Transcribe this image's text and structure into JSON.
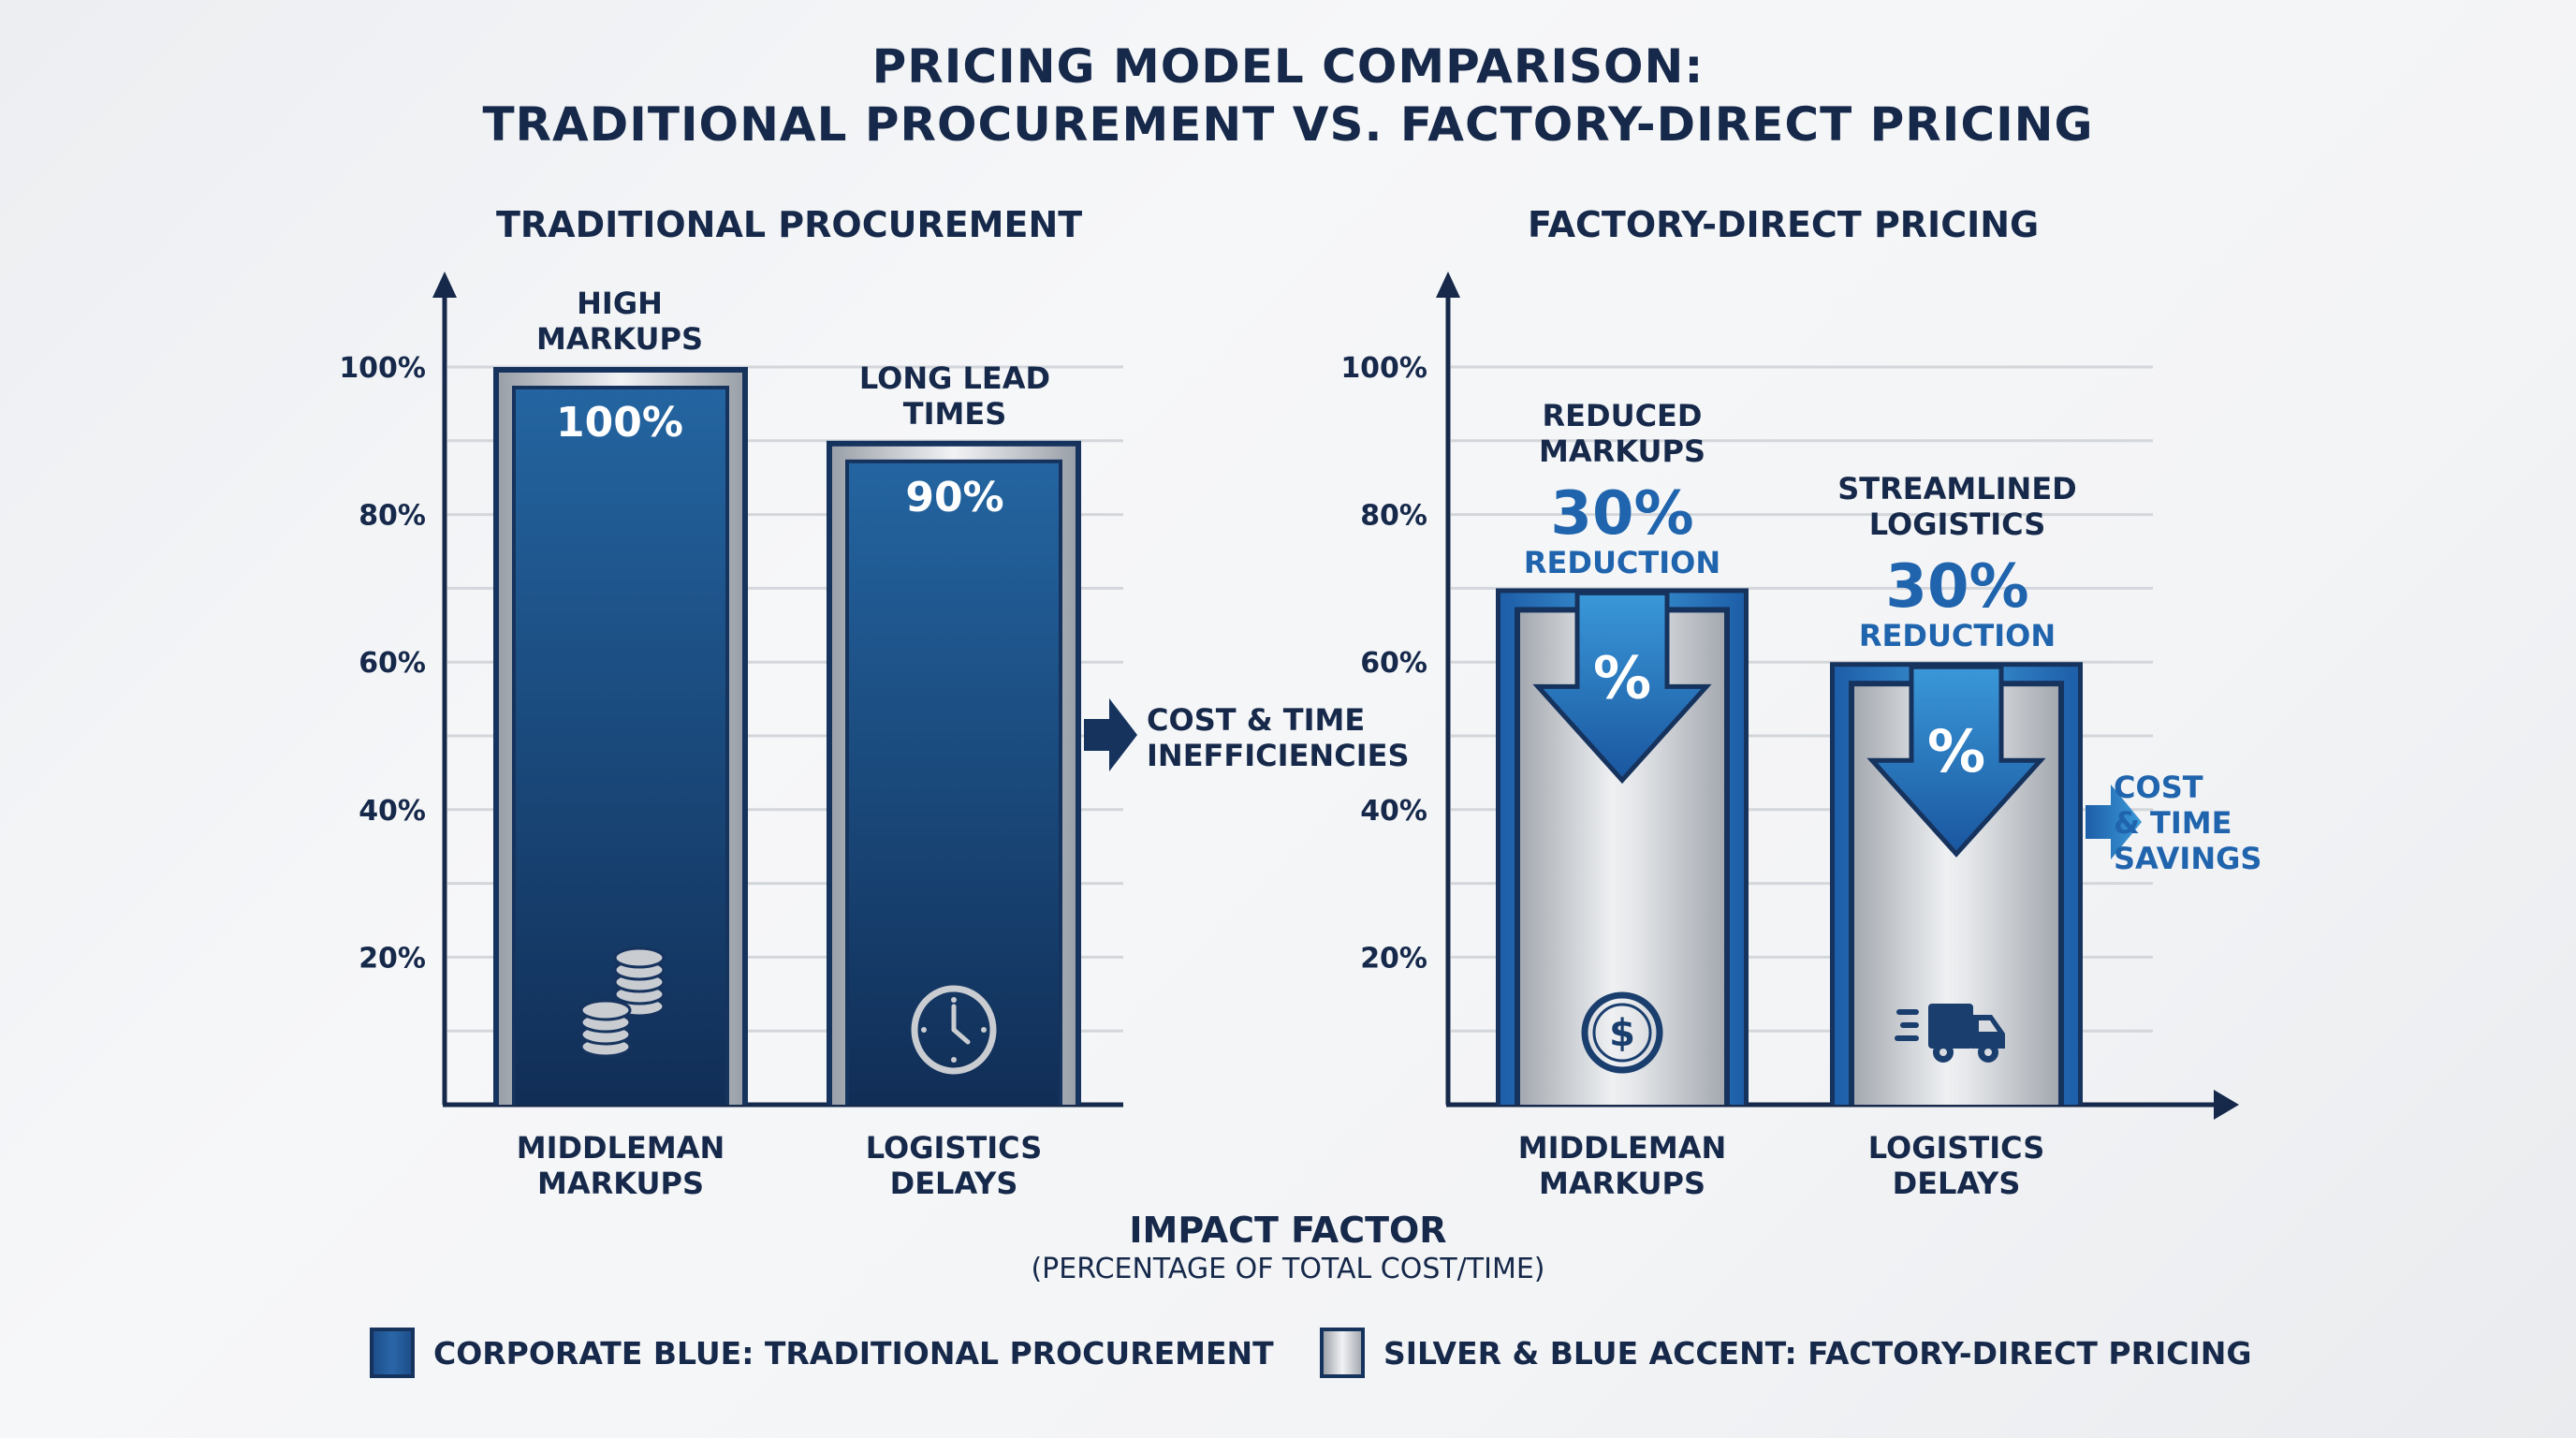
{
  "title_line1": "PRICING MODEL COMPARISON:",
  "title_line2": "TRADITIONAL PROCUREMENT VS. FACTORY-DIRECT PRICING",
  "colors": {
    "corporate_blue": "#1f4f8c",
    "dark_navy": "#16294a",
    "accent_blue": "#1f64ad",
    "silver": "#d4d7db"
  },
  "x_axis_label": "IMPACT FACTOR",
  "x_axis_sublabel": "(PERCENTAGE OF TOTAL COST/TIME)",
  "legend": [
    {
      "label": "CORPORATE BLUE: TRADITIONAL PROCUREMENT",
      "swatch": "corporate-blue"
    },
    {
      "label": "SILVER & BLUE ACCENT: FACTORY-DIRECT PRICING",
      "swatch": "silver-blue-accent"
    }
  ],
  "chart_data": [
    {
      "type": "bar",
      "title": "TRADITIONAL PROCUREMENT",
      "categories": [
        "MIDDLEMAN MARKUPS",
        "LOGISTICS DELAYS"
      ],
      "values": [
        100,
        90
      ],
      "value_labels": [
        "100%",
        "90%"
      ],
      "annotations_above": [
        "HIGH MARKUPS",
        "LONG LEAD TIMES"
      ],
      "bar_icons": [
        "coin-stack-icon",
        "clock-icon"
      ],
      "side_callout": "COST & TIME INEFFICIENCIES",
      "ylim": [
        0,
        100
      ],
      "yticks": [
        20,
        40,
        60,
        80,
        100
      ],
      "ytick_labels": [
        "20%",
        "40%",
        "60%",
        "80%",
        "100%"
      ],
      "grid": true,
      "ylabel": "",
      "xlabel": "IMPACT FACTOR (PERCENTAGE OF TOTAL COST/TIME)"
    },
    {
      "type": "bar",
      "title": "FACTORY-DIRECT PRICING",
      "categories": [
        "MIDDLEMAN MARKUPS",
        "LOGISTICS DELAYS"
      ],
      "values": [
        70,
        60
      ],
      "annotations_above": [
        "REDUCED MARKUPS",
        "STREAMLINED LOGISTICS"
      ],
      "reduction_values": [
        "30%",
        "30%"
      ],
      "reduction_label": "REDUCTION",
      "bar_icons": [
        "dollar-coin-icon",
        "delivery-truck-icon"
      ],
      "bar_badge": "%",
      "side_callout": "COST & TIME SAVINGS",
      "ylim": [
        0,
        100
      ],
      "yticks": [
        20,
        40,
        60,
        80,
        100
      ],
      "ytick_labels": [
        "20%",
        "40%",
        "60%",
        "80%",
        "100%"
      ],
      "grid": true,
      "ylabel": "",
      "xlabel": "IMPACT FACTOR (PERCENTAGE OF TOTAL COST/TIME)"
    }
  ]
}
